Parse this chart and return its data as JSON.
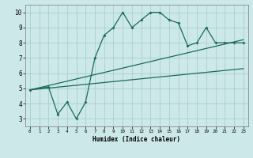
{
  "xlabel": "Humidex (Indice chaleur)",
  "bg_color": "#cce8e8",
  "grid_color": "#aacfcf",
  "line_color": "#1a6b5a",
  "xlim": [
    -0.5,
    23.5
  ],
  "ylim": [
    2.5,
    10.5
  ],
  "xticks": [
    0,
    1,
    2,
    3,
    4,
    5,
    6,
    7,
    8,
    9,
    10,
    11,
    12,
    13,
    14,
    15,
    16,
    17,
    18,
    19,
    20,
    21,
    22,
    23
  ],
  "yticks": [
    3,
    4,
    5,
    6,
    7,
    8,
    9,
    10
  ],
  "line1_x": [
    0,
    2,
    3,
    4,
    5,
    6,
    7,
    8,
    9,
    10,
    11,
    12,
    13,
    14,
    15,
    16,
    17,
    18,
    19,
    20,
    21,
    22,
    23
  ],
  "line1_y": [
    4.9,
    5.1,
    3.3,
    4.1,
    3.0,
    4.1,
    7.0,
    8.5,
    9.0,
    10.0,
    9.0,
    9.5,
    10.0,
    10.0,
    9.5,
    9.3,
    7.8,
    8.0,
    9.0,
    8.0,
    8.0,
    8.0,
    8.0
  ],
  "line2_x": [
    0,
    23
  ],
  "line2_y": [
    4.9,
    8.2
  ],
  "line3_x": [
    0,
    23
  ],
  "line3_y": [
    4.9,
    6.3
  ]
}
